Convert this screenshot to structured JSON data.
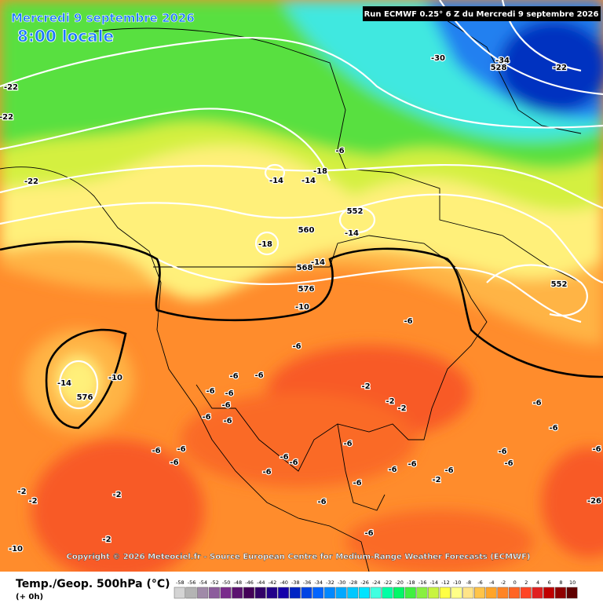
{
  "header": {
    "date": "Mercredi 9 septembre 2026",
    "time": "8:00 locale",
    "run": "Run ECMWF 0.25° 6 Z du Mercredi 9 septembre 2026"
  },
  "copyright": "Copyright © 2026 Meteociel.fr - Source European Centre for Medium-Range Weather Forecasts (ECMWF)",
  "map_labels": [
    "-22",
    "-22",
    "-22",
    "-14",
    "-14",
    "-18",
    "552",
    "-14",
    "560",
    "-18",
    "-14",
    "568",
    "576",
    "-10",
    "-6",
    "-6",
    "-6",
    "-6",
    "-6",
    "-6",
    "-6",
    "-6",
    "-6",
    "-2",
    "-2",
    "-2",
    "-14",
    "576",
    "-10",
    "-6",
    "-6",
    "-6",
    "-6",
    "-6",
    "-6",
    "-6",
    "-6",
    "-6",
    "-6",
    "-6",
    "-6",
    "-6",
    "-6",
    "-6",
    "-6",
    "-6",
    "-2",
    "-2",
    "-2",
    "-2",
    "-2",
    "-10",
    "-26",
    "-30",
    "528",
    "-34",
    "-22",
    "552",
    "-6",
    "-6"
  ],
  "footer": {
    "variable": "Temp./Geop. 500hPa (°C)",
    "lead": "(+ 0h)"
  },
  "scale": {
    "values": [
      -58,
      -56,
      -54,
      -52,
      -50,
      -48,
      -46,
      -44,
      -42,
      -40,
      -38,
      -36,
      -34,
      -32,
      -30,
      -28,
      -26,
      -24,
      -22,
      -20,
      -18,
      -16,
      -14,
      -12,
      -10,
      -8,
      -6,
      -4,
      -2,
      0,
      2,
      4,
      6,
      8,
      10
    ],
    "colors": [
      "#d4d4d4",
      "#b4b4b4",
      "#a08aa8",
      "#8c5c9c",
      "#7a2c8c",
      "#5c1270",
      "#440058",
      "#320068",
      "#22008a",
      "#1400aa",
      "#0024c4",
      "#0044e4",
      "#0064ff",
      "#0088ff",
      "#00a8ff",
      "#00c8ff",
      "#00e4ff",
      "#40ffe0",
      "#00ffa4",
      "#00f868",
      "#40f040",
      "#88f040",
      "#c8f440",
      "#ffff44",
      "#ffff88",
      "#ffe488",
      "#ffc448",
      "#ffa428",
      "#ff8424",
      "#ff6424",
      "#ff4424",
      "#e02020",
      "#c00000",
      "#900000",
      "#600000"
    ]
  }
}
